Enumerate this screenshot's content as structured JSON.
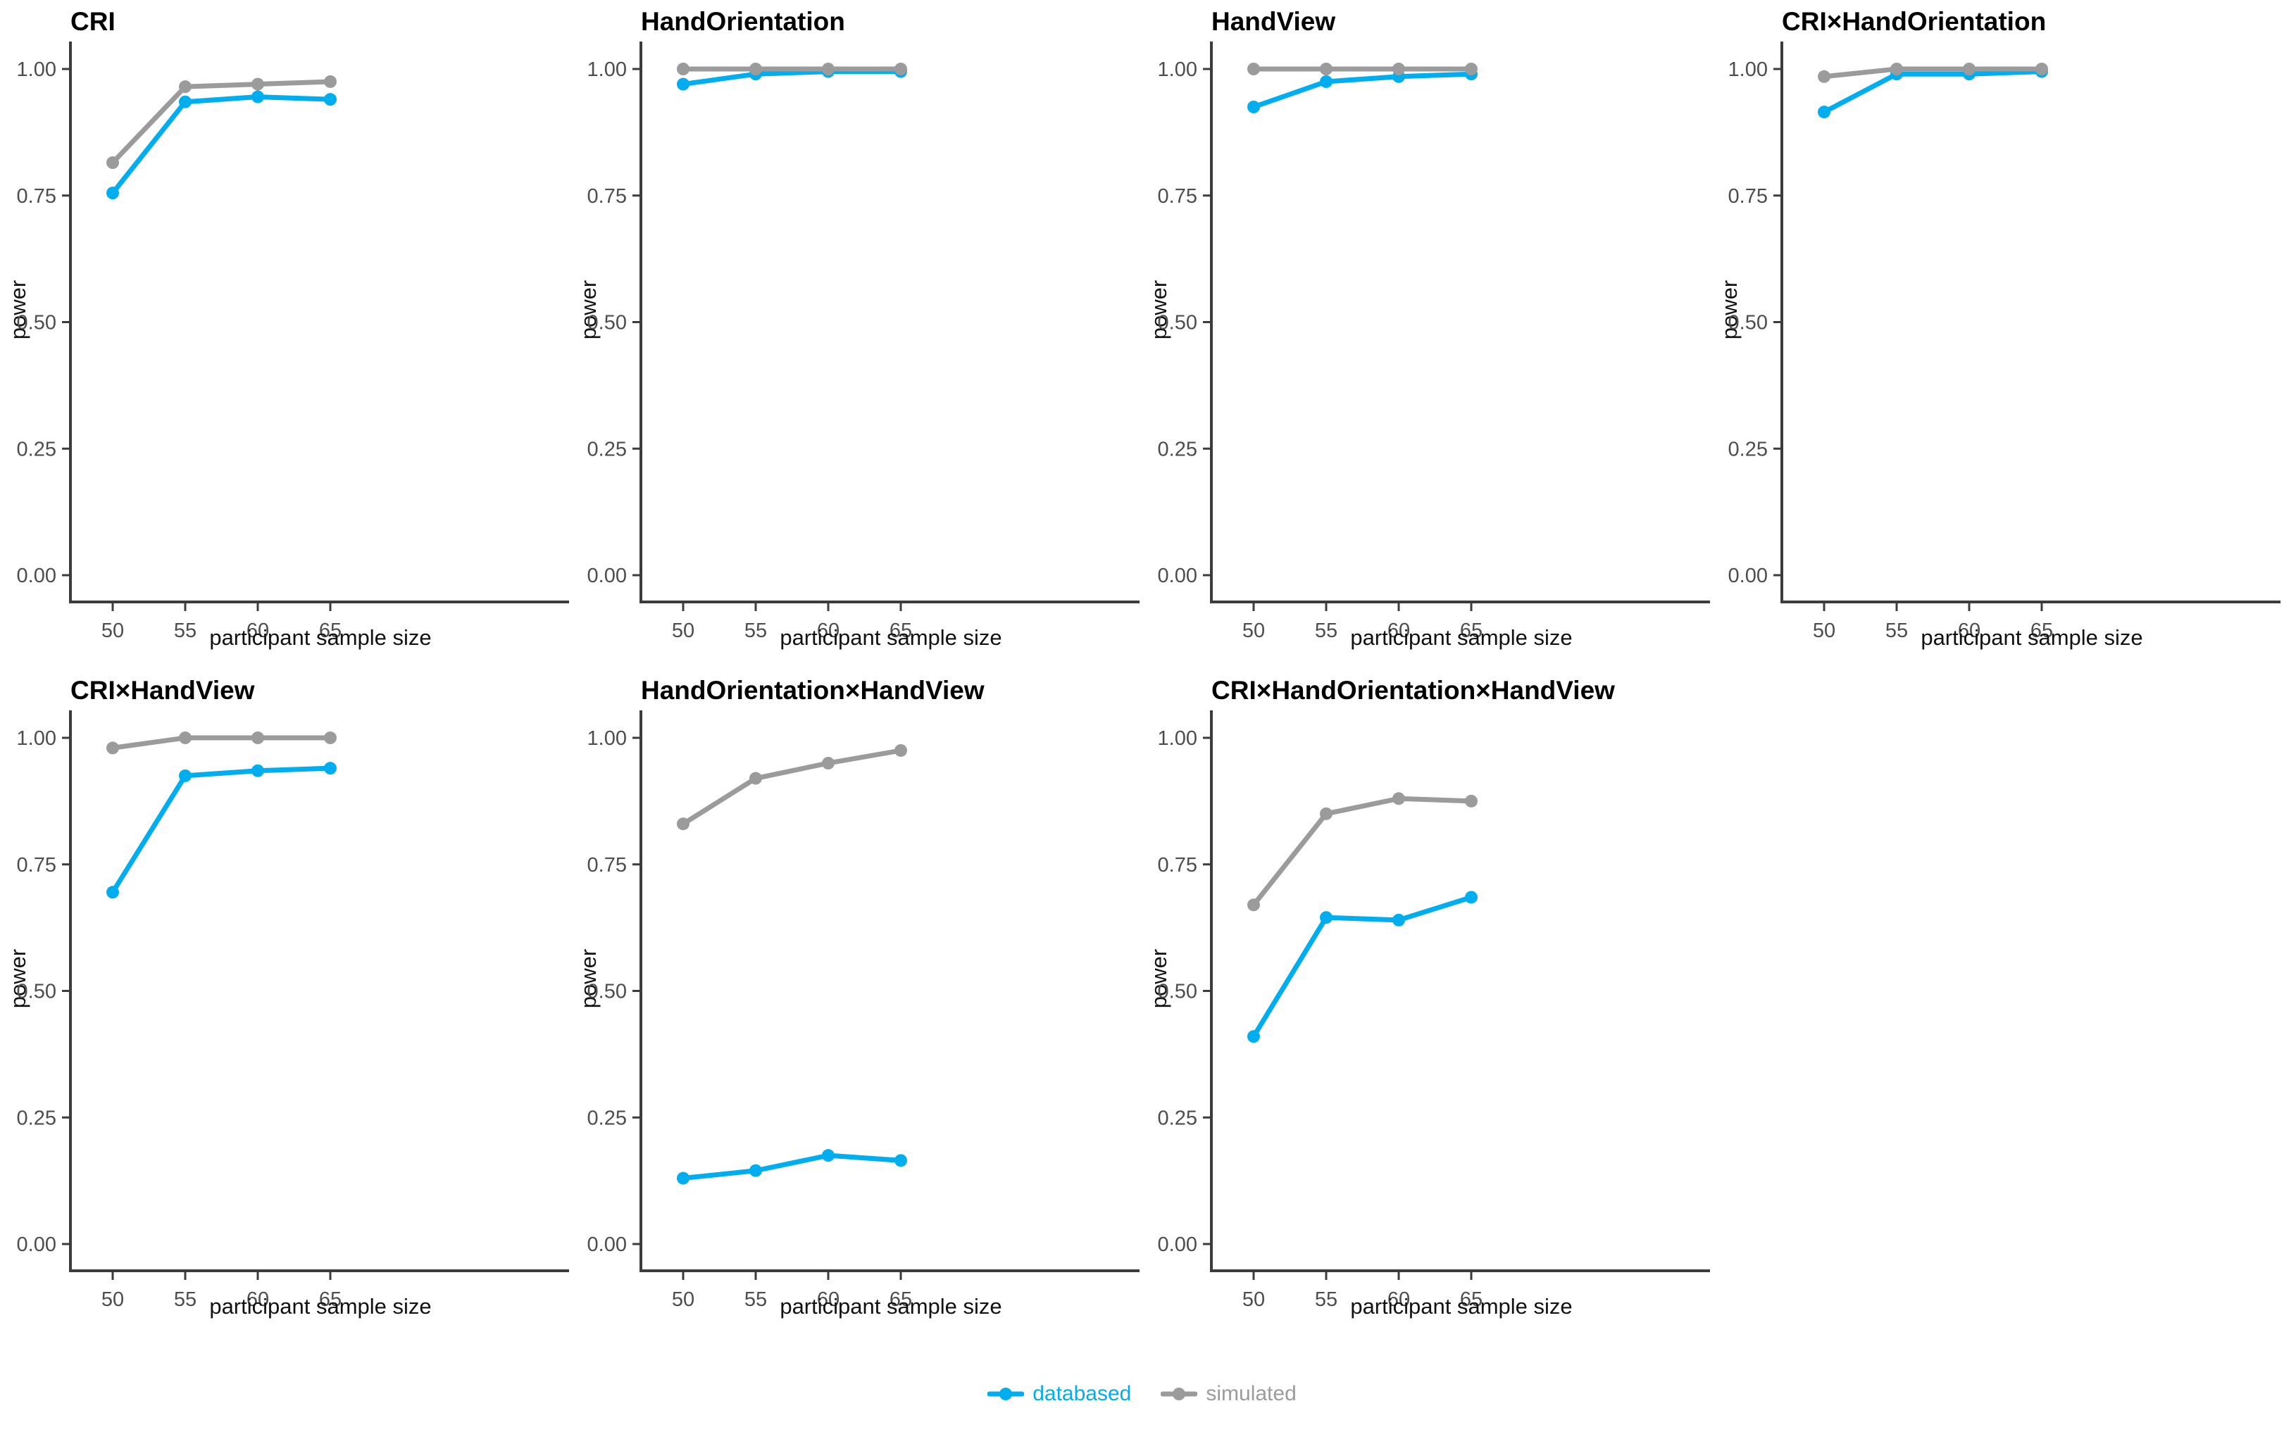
{
  "figure": {
    "background": "#ffffff",
    "legend": {
      "items": [
        {
          "label": "databased",
          "color": "#00AEEF"
        },
        {
          "label": "simulated",
          "color": "#9B9B9B"
        }
      ]
    }
  },
  "style": {
    "axis_line_color": "#3C3C3C",
    "tick_label_color": "#4D4D4D",
    "point_radius": 9,
    "line_width": 7
  },
  "chart_data": {
    "type": "line",
    "layout": "facet-grid 4 columns, 7 panels, legend bottom",
    "x": [
      50,
      55,
      60,
      65
    ],
    "xlabel": "participant sample size",
    "ylabel": "power",
    "ylim": [
      0,
      1.05
    ],
    "y_ticks": [
      0,
      0.25,
      0.5,
      0.75,
      1
    ],
    "y_tick_labels": [
      "0.00",
      "0.25",
      "0.50",
      "0.75",
      "1.00"
    ],
    "grid": false,
    "legend_position": "bottom",
    "series_colors": {
      "databased": "#00AEEF",
      "simulated": "#9B9B9B"
    },
    "panels": [
      {
        "title": "CRI",
        "series": [
          {
            "name": "databased",
            "values": [
              0.755,
              0.935,
              0.945,
              0.94
            ]
          },
          {
            "name": "simulated",
            "values": [
              0.815,
              0.965,
              0.97,
              0.975
            ]
          }
        ]
      },
      {
        "title": "HandOrientation",
        "series": [
          {
            "name": "databased",
            "values": [
              0.97,
              0.99,
              0.995,
              0.995
            ]
          },
          {
            "name": "simulated",
            "values": [
              1.0,
              1.0,
              1.0,
              1.0
            ]
          }
        ]
      },
      {
        "title": "HandView",
        "series": [
          {
            "name": "databased",
            "values": [
              0.925,
              0.975,
              0.985,
              0.99
            ]
          },
          {
            "name": "simulated",
            "values": [
              1.0,
              1.0,
              1.0,
              1.0
            ]
          }
        ]
      },
      {
        "title": "CRI×HandOrientation",
        "series": [
          {
            "name": "databased",
            "values": [
              0.915,
              0.99,
              0.99,
              0.995
            ]
          },
          {
            "name": "simulated",
            "values": [
              0.985,
              1.0,
              1.0,
              1.0
            ]
          }
        ]
      },
      {
        "title": "CRI×HandView",
        "series": [
          {
            "name": "databased",
            "values": [
              0.695,
              0.925,
              0.935,
              0.94
            ]
          },
          {
            "name": "simulated",
            "values": [
              0.98,
              1.0,
              1.0,
              1.0
            ]
          }
        ]
      },
      {
        "title": "HandOrientation×HandView",
        "series": [
          {
            "name": "databased",
            "values": [
              0.13,
              0.145,
              0.175,
              0.165
            ]
          },
          {
            "name": "simulated",
            "values": [
              0.83,
              0.92,
              0.95,
              0.975
            ]
          }
        ]
      },
      {
        "title": "CRI×HandOrientation×HandView",
        "series": [
          {
            "name": "databased",
            "values": [
              0.41,
              0.645,
              0.64,
              0.685
            ]
          },
          {
            "name": "simulated",
            "values": [
              0.67,
              0.85,
              0.88,
              0.875
            ]
          }
        ]
      }
    ]
  }
}
